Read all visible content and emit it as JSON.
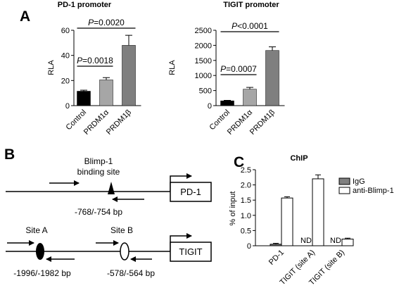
{
  "panels": {
    "a": "A",
    "b": "B",
    "c": "C"
  },
  "chart_data": [
    {
      "type": "bar",
      "panel": "A",
      "title": "PD-1 promoter",
      "ylabel": "RLA",
      "categories": [
        "Control",
        "PRDM1α",
        "PRDM1β"
      ],
      "values": [
        11.5,
        20.5,
        48
      ],
      "errors": [
        0.8,
        1.8,
        8
      ],
      "colors": [
        "#000000",
        "#a6a6a6",
        "#7f7f7f"
      ],
      "ylim": [
        0,
        60
      ],
      "yticks": [
        "0",
        "20",
        "40",
        "60"
      ],
      "comparisons": [
        {
          "from": 0,
          "to": 1,
          "label": "P=0.0018"
        },
        {
          "from": 0,
          "to": 2,
          "label": "P=0.0020"
        }
      ]
    },
    {
      "type": "bar",
      "panel": "A",
      "title": "TIGIT promoter",
      "ylabel": "RLA",
      "categories": [
        "Control",
        "PRDM1α",
        "PRDM1β"
      ],
      "values": [
        160,
        545,
        1830
      ],
      "errors": [
        15,
        60,
        120
      ],
      "colors": [
        "#000000",
        "#a6a6a6",
        "#7f7f7f"
      ],
      "ylim": [
        0,
        2500
      ],
      "yticks": [
        "0",
        "500",
        "1000",
        "1500",
        "2000",
        "2500"
      ],
      "comparisons": [
        {
          "from": 0,
          "to": 1,
          "label": "P=0.0007"
        },
        {
          "from": 0,
          "to": 2,
          "label": "P<0.0001"
        }
      ]
    },
    {
      "type": "bar",
      "panel": "C",
      "title": "ChIP",
      "ylabel": "% of input",
      "categories": [
        "PD-1",
        "TIGIT (site A)",
        "TIGIT (site B)"
      ],
      "series": [
        {
          "name": "IgG",
          "values": [
            0.05,
            null,
            null
          ],
          "errors": [
            0.03,
            null,
            null
          ],
          "color": "#808080"
        },
        {
          "name": "anti-Blimp-1",
          "values": [
            1.57,
            2.2,
            0.22
          ],
          "errors": [
            0.04,
            0.13,
            0.03
          ],
          "color": "#ffffff"
        }
      ],
      "not_detected": "ND",
      "ylim": [
        0,
        2.5
      ],
      "yticks": [
        "0",
        "0.5",
        "1.0",
        "1.5",
        "2.0",
        "2.5"
      ],
      "legend_position": "top-right"
    }
  ],
  "diagram": {
    "pd1": {
      "site_label_line1": "Blimp-1",
      "site_label_line2": "binding site",
      "position": "-768/-754 bp",
      "gene": "PD-1"
    },
    "tigit": {
      "site_a": "Site A",
      "site_b": "Site B",
      "position_a": "-1996/-1982 bp",
      "position_b": "-578/-564 bp",
      "gene": "TIGIT"
    }
  }
}
